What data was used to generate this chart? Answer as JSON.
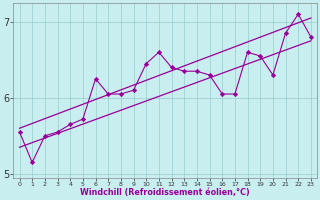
{
  "xlabel": "Windchill (Refroidissement éolien,°C)",
  "bg_color": "#c8eef0",
  "line_color": "#990099",
  "grid_color": "#99cccc",
  "x_values": [
    0,
    1,
    2,
    3,
    4,
    5,
    6,
    7,
    8,
    9,
    10,
    11,
    12,
    13,
    14,
    15,
    16,
    17,
    18,
    19,
    20,
    21,
    22,
    23
  ],
  "y_main": [
    5.55,
    5.15,
    5.5,
    5.55,
    5.65,
    5.72,
    6.25,
    6.05,
    6.05,
    6.1,
    6.45,
    6.6,
    6.4,
    6.35,
    6.35,
    6.3,
    6.05,
    6.05,
    6.6,
    6.55,
    6.3,
    6.85,
    7.1,
    6.8
  ],
  "reg_upper_start": 5.6,
  "reg_upper_end": 7.05,
  "reg_lower_start": 5.35,
  "reg_lower_end": 6.75,
  "ylim": [
    4.95,
    7.25
  ],
  "yticks": [
    5,
    6,
    7
  ],
  "xlim": [
    -0.5,
    23.5
  ],
  "xticks": [
    0,
    1,
    2,
    3,
    4,
    5,
    6,
    7,
    8,
    9,
    10,
    11,
    12,
    13,
    14,
    15,
    16,
    17,
    18,
    19,
    20,
    21,
    22,
    23
  ],
  "xtick_labels": [
    "0",
    "1",
    "2",
    "3",
    "4",
    "5",
    "6",
    "7",
    "8",
    "9",
    "10",
    "11",
    "12",
    "13",
    "14",
    "15",
    "16",
    "17",
    "18",
    "19",
    "20",
    "21",
    "22",
    "23"
  ]
}
